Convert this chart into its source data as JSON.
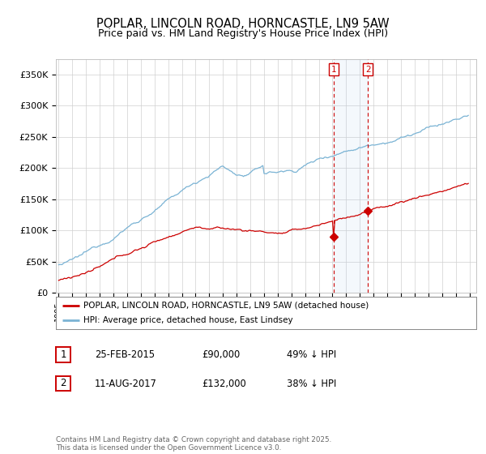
{
  "title": "POPLAR, LINCOLN ROAD, HORNCASTLE, LN9 5AW",
  "subtitle": "Price paid vs. HM Land Registry's House Price Index (HPI)",
  "ylim": [
    0,
    375000
  ],
  "yticks": [
    0,
    50000,
    100000,
    150000,
    200000,
    250000,
    300000,
    350000
  ],
  "ytick_labels": [
    "£0",
    "£50K",
    "£100K",
    "£150K",
    "£200K",
    "£250K",
    "£300K",
    "£350K"
  ],
  "hpi_color": "#7ab3d4",
  "price_color": "#cc0000",
  "marker1_price": 90000,
  "marker2_price": 132000,
  "marker1_date_str": "25-FEB-2015",
  "marker2_date_str": "11-AUG-2017",
  "marker1_hpi_pct": "49% ↓ HPI",
  "marker2_hpi_pct": "38% ↓ HPI",
  "legend_label1": "POPLAR, LINCOLN ROAD, HORNCASTLE, LN9 5AW (detached house)",
  "legend_label2": "HPI: Average price, detached house, East Lindsey",
  "footer": "Contains HM Land Registry data © Crown copyright and database right 2025.\nThis data is licensed under the Open Government Licence v3.0.",
  "background_color": "#ffffff",
  "grid_color": "#d0d0d0",
  "title_fontsize": 10.5,
  "subtitle_fontsize": 9,
  "axis_fontsize": 8
}
